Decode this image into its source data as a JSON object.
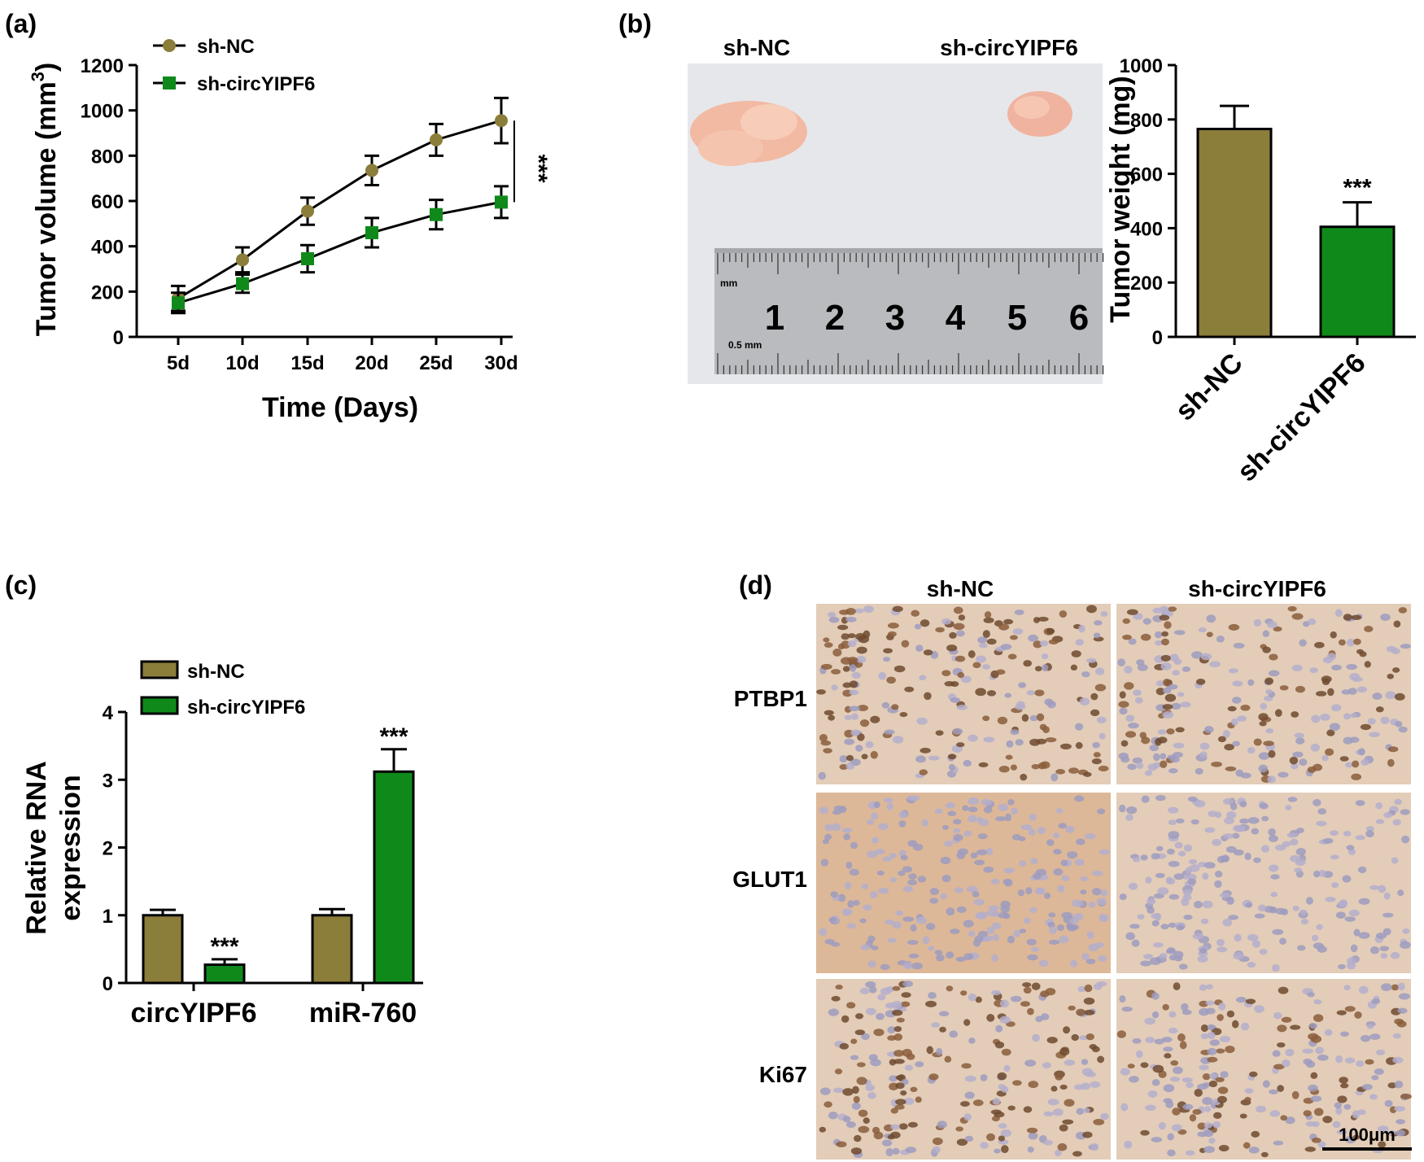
{
  "colors": {
    "sh_nc": "#8B7D3A",
    "sh_circ": "#0F8A1A",
    "ihc_bg": "#E3CDB8"
  },
  "panels": {
    "a": {
      "label": "(a)"
    },
    "b": {
      "label": "(b)",
      "photo_labels": [
        "sh-NC",
        "sh-circYIPF6"
      ],
      "ruler_numbers": [
        "1",
        "2",
        "3",
        "4",
        "5",
        "6"
      ],
      "ruler_unit_top": "mm",
      "ruler_unit_bottom": "0.5 mm"
    },
    "c": {
      "label": "(c)"
    },
    "d": {
      "label": "(d)",
      "columns": [
        "sh-NC",
        "sh-circYIPF6"
      ],
      "rows": [
        "PTBP1",
        "GLUT1",
        "Ki67"
      ],
      "scale_bar": "100μm"
    }
  },
  "chart_data": [
    {
      "type": "line",
      "panel": "a",
      "x": [
        "5d",
        "10d",
        "15d",
        "20d",
        "25d",
        "30d"
      ],
      "xlabel": "Time (Days)",
      "ylabel": "Tumor volume (mm",
      "ylabel_sup": "3",
      "ylabel_end": ")",
      "ylim": [
        0,
        1200
      ],
      "yticks": [
        0,
        200,
        400,
        600,
        800,
        1000,
        1200
      ],
      "legend_position": "top-left",
      "significance": "***",
      "series": [
        {
          "name": "sh-NC",
          "marker": "circle",
          "values": [
            170,
            340,
            555,
            735,
            870,
            955
          ],
          "errors": [
            55,
            55,
            60,
            65,
            70,
            100
          ]
        },
        {
          "name": "sh-circYIPF6",
          "marker": "square",
          "values": [
            150,
            235,
            345,
            460,
            540,
            595
          ],
          "errors": [
            45,
            40,
            60,
            65,
            65,
            70
          ]
        }
      ]
    },
    {
      "type": "bar",
      "panel": "b",
      "categories": [
        "sh-NC",
        "sh-circYIPF6"
      ],
      "values": [
        765,
        405
      ],
      "errors": [
        85,
        90
      ],
      "ylabel": "Tumor weight (mg)",
      "ylim": [
        0,
        1000
      ],
      "yticks": [
        0,
        200,
        400,
        600,
        800,
        1000
      ],
      "annotations": [
        "",
        "***"
      ]
    },
    {
      "type": "bar",
      "panel": "c",
      "categories": [
        "circYIPF6",
        "miR-760"
      ],
      "ylabel": "Relative RNA expression",
      "ylabel_lines": [
        "Relative RNA",
        "expression"
      ],
      "ylim": [
        0,
        4
      ],
      "yticks": [
        0,
        1,
        2,
        3,
        4
      ],
      "legend_position": "top-left",
      "series": [
        {
          "name": "sh-NC",
          "values": [
            1.0,
            1.0
          ],
          "errors": [
            0.08,
            0.09
          ],
          "annotations": [
            "",
            ""
          ]
        },
        {
          "name": "sh-circYIPF6",
          "values": [
            0.27,
            3.12
          ],
          "errors": [
            0.08,
            0.33
          ],
          "annotations": [
            "***",
            "***"
          ]
        }
      ]
    }
  ]
}
